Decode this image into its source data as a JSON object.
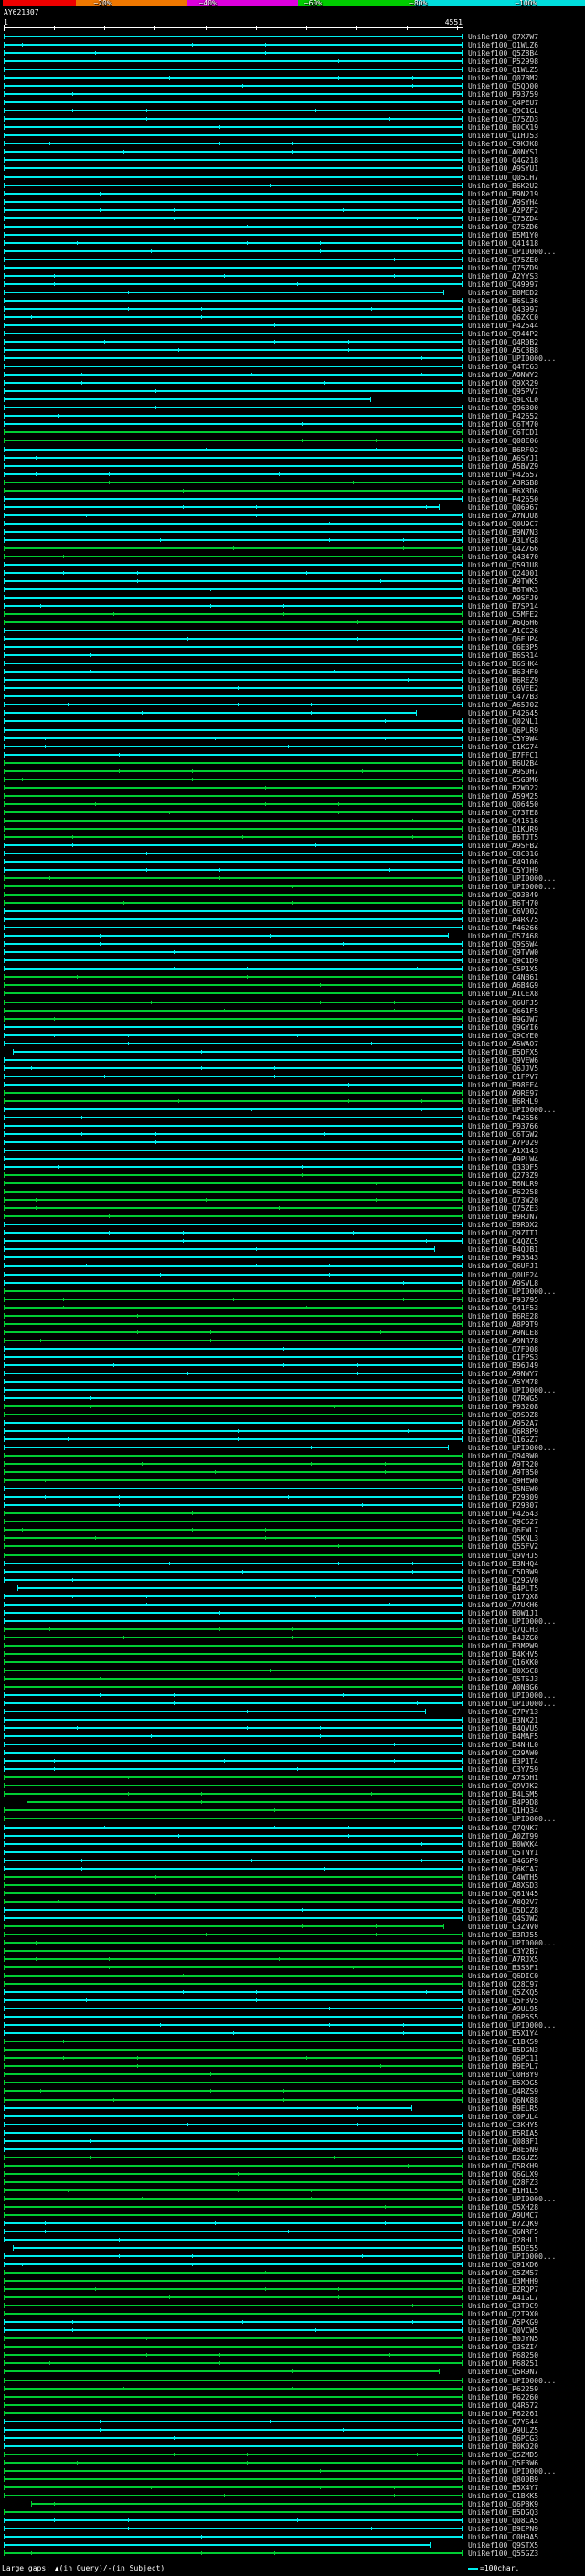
{
  "chart_data": {
    "type": "alignment_hit_map",
    "title": "AY621307",
    "x_axis": {
      "min": 1,
      "max": 4551,
      "tick_interval": 500,
      "start_label": "1",
      "end_label": "4551"
    },
    "identity_key": {
      "labels": [
        "~20%",
        "~40%",
        "~60%",
        "~80%",
        "~100%"
      ],
      "colors": [
        "#ee0000",
        "#ee7700",
        "#dd00dd",
        "#00cc00",
        "#00dddd"
      ],
      "segments": [
        [
          0.5,
          13
        ],
        [
          13,
          32
        ],
        [
          32,
          51
        ],
        [
          51,
          71
        ],
        [
          71,
          100
        ]
      ],
      "label_pos": [
        16,
        34,
        52,
        70,
        88
      ]
    },
    "legend": {
      "left_text": "Large gaps: ▲(in Query)/-(in Subject)",
      "scale_text": "=100char.",
      "scale_color": "#00eeee"
    },
    "hits": {
      "prefix": "UniRef100_",
      "palette": {
        "c": "#00eeee",
        "g": "#00cc33"
      },
      "pattern": "ccccccccccccccccccccccccccccccccccccccccccccccccggccccggccccccggccccccggccccccccccccccccggggggggggccccggggccccccccggggggccccccccggccccccccggggggccccccccgggggggcccccccggccccggggcccggggggccccccccggggggggccccccccccggggggccccccggggccggggggggccccccggggggggccccccggggggggccccccggggggccggggggggggccccggggggggccccgggg",
      "spans_default": [
        0,
        100
      ],
      "spans": {
        "31": [
          0,
          96
        ],
        "44": [
          0,
          80
        ],
        "57": [
          0,
          95
        ],
        "82": [
          0,
          90
        ],
        "109": [
          0,
          97
        ],
        "123": [
          2,
          100
        ],
        "147": [
          0,
          94
        ],
        "171": [
          0,
          97
        ],
        "188": [
          3,
          100
        ],
        "203": [
          0,
          92
        ],
        "214": [
          5,
          100
        ],
        "229": [
          0,
          96
        ],
        "251": [
          0,
          89
        ],
        "268": [
          2,
          100
        ],
        "283": [
          0,
          95
        ],
        "299": [
          6,
          100
        ],
        "304": [
          0,
          93
        ]
      },
      "labels": [
        "Q7X7W7",
        "Q1WLZ6",
        "Q5Z8B4",
        "P52998",
        "Q1WLZ5",
        "Q07BM2",
        "Q5QD00",
        "P93759",
        "Q4PEU7",
        "Q9C1GL",
        "Q75ZD3",
        "B0CX19",
        "Q1HJ53",
        "C9KJK8",
        "A0NYS1",
        "Q4G218",
        "A9SYU1",
        "Q05CH7",
        "B6K2U2",
        "B9N219",
        "A9SYH4",
        "A2PZF2",
        "Q75ZD4",
        "Q75ZD6",
        "B5M1Y0",
        "Q41418",
        "UPI0000...",
        "Q75ZE0",
        "Q75ZD9",
        "A2YYS3",
        "Q49997",
        "B8MED2",
        "B6SL36",
        "Q43997",
        "Q6ZKC0",
        "P42544",
        "Q944P2",
        "Q4R0B2",
        "A5C3B8",
        "UPI0000...",
        "Q4TC63",
        "A9NWY2",
        "Q9XR29",
        "Q95PV7",
        "Q9LKL0",
        "Q96300",
        "P42652",
        "C6TM70",
        "C6TCD1",
        "Q08E06",
        "B6RF02",
        "A6SYJ1",
        "A5BVZ9",
        "P42657",
        "A3RGB8",
        "B6X3D6",
        "P42650",
        "Q06967",
        "A7NUU8",
        "Q0U9C7",
        "B9N7N3",
        "A3LYG8",
        "Q4Z766",
        "Q43470",
        "Q59JU8",
        "Q24001",
        "A9TWK5",
        "B6TWK3",
        "A9SFJ9",
        "B7SP14",
        "C5MFE2",
        "A6Q6H6",
        "A1CC26",
        "Q6EUP4",
        "C6E3P5",
        "B6SR14",
        "B6SHK4",
        "B63HF0",
        "B6REZ9",
        "C6VEE2",
        "C477B3",
        "A65J0Z",
        "P42645",
        "Q02NL1",
        "Q6PLR9",
        "C5Y9W4",
        "C1KG74",
        "B7FFC1",
        "B6U2B4",
        "A9S0H7",
        "C5GBM6",
        "B2W022",
        "A59M25",
        "Q06450",
        "Q73TE8",
        "Q41516",
        "Q1KUR9",
        "B6TJT5",
        "A9SFB2",
        "C8C31G",
        "P49106",
        "C5YJH9",
        "UPI0000...",
        "UPI0000...",
        "Q93B49",
        "B6TH70",
        "C6V002",
        "A4RK75",
        "P46266",
        "O57468",
        "Q9S5W4",
        "Q9TVW0",
        "Q9C1D9",
        "C5P1X5",
        "C4NB61",
        "A6B4G9",
        "A1CEX8",
        "Q6UFJ5",
        "Q661F5",
        "B9GJW7",
        "Q9GYI6",
        "Q9CYE0",
        "A5WAO7",
        "B5DFX5",
        "Q9VEW6",
        "Q6JJV5",
        "C1FPV7",
        "B98EF4",
        "A9RE97",
        "B6RHL9",
        "UPI0000...",
        "P42656",
        "P93766",
        "C6TGW2",
        "A7P029",
        "A1X143",
        "A9PLW4",
        "Q330F5",
        "Q273Z9",
        "B6NLR9",
        "P62258",
        "Q73W20",
        "Q75ZE3",
        "B9RJN7",
        "B9R0X2",
        "Q9ZTT1",
        "C4QZC5",
        "B4QJB1",
        "P93343",
        "Q6UFJ1",
        "Q0UF24",
        "A9SVL8",
        "UPI0000...",
        "P93795",
        "Q41F53",
        "B6RE28",
        "A8P9T9",
        "A9NLE8",
        "A9NR78",
        "Q7F008",
        "C1FPS3",
        "B96J49",
        "A9NWY7",
        "A5YM78",
        "UPI0000...",
        "Q7RWG5",
        "P93208",
        "Q9S9Z8",
        "A952A7",
        "Q6R8P9",
        "Q16GZ7",
        "UPI0000...",
        "Q948W0",
        "A9TR20",
        "A9TB50",
        "Q9HEW0",
        "Q5NEW0",
        "P29309",
        "P29307",
        "P42643",
        "Q9C527",
        "Q6FWL7",
        "Q5KNL3",
        "Q55FV2",
        "Q9VHJ5",
        "B3NHQ4",
        "C5DBW9",
        "Q29GV0",
        "B4PLT5",
        "Q17QX8",
        "A7UKH6",
        "B0W1J1",
        "UPI0000...",
        "Q7QCH3",
        "B4JZG0",
        "B3MPW9",
        "B4KHV5",
        "Q16XK0",
        "B0X5C8",
        "Q5TSJ3",
        "A0NBG6",
        "UPI0000...",
        "UPI0000...",
        "Q7PY13",
        "B3NX21",
        "B4QVU5",
        "B4MAF5",
        "B4NHL0",
        "Q29AW0",
        "B3P1T4",
        "C3Y759",
        "A7SDH1",
        "Q9VJK2",
        "B4LSM5",
        "B4P9D8",
        "Q1HQ34",
        "UPI0000...",
        "Q7QNK7",
        "A0ZT99",
        "B0WXK4",
        "Q5TNY1",
        "B4G6P9",
        "Q6KCA7",
        "C4WTH5",
        "A8XSD3",
        "Q61N45",
        "A8Q2V7",
        "Q5DCZ8",
        "Q4SJW2",
        "C3ZNV0",
        "B3RJ55",
        "UPI0000...",
        "C3Y2B7",
        "A7RJX5",
        "B3S3F1",
        "Q6DIC0",
        "Q28C97",
        "Q5ZKQ5",
        "Q5F3V5",
        "A9UL95",
        "Q6P5S5",
        "UPI0000...",
        "B5X1Y4",
        "C1BK59",
        "B5DGN3",
        "Q6PC11",
        "B9EPL7",
        "C0H8Y9",
        "B5XDG5",
        "Q4RZS9",
        "Q6NX88",
        "B9ELR5",
        "C0PUL4",
        "C3KHY5",
        "B5RIA5",
        "Q08BF1",
        "A8E5N9",
        "B2GUZ5",
        "Q5RKH9",
        "Q6GLX9",
        "Q28FZ3",
        "B1H1L5",
        "UPI0000...",
        "Q5XH28",
        "A9UMC7",
        "B7ZQK9",
        "Q6NRF5",
        "Q28HL1",
        "B5DE55",
        "UPI0000...",
        "Q91XD6",
        "Q5ZM57",
        "Q3MHH9",
        "B2RQP7",
        "A4IGL7",
        "Q3T0C9",
        "Q2T9X0",
        "A5PKG9",
        "Q0VCW5",
        "B0JYN5",
        "Q3SZI4",
        "P68250",
        "P68251",
        "Q5R9N7",
        "UPI0000...",
        "P62259",
        "P62260",
        "Q4R572",
        "P62261",
        "Q7YS44",
        "A9ULZ5",
        "Q6PCG3",
        "B0K020",
        "Q5ZMD5",
        "Q5F3W6",
        "UPI0000...",
        "Q800B9",
        "B5X4Y7",
        "C1BKK5",
        "Q6PBK9",
        "B5DGQ3",
        "Q08CA5",
        "B9EPN9",
        "C0H9A5",
        "Q9STX5",
        "Q55GZ3"
      ]
    }
  }
}
